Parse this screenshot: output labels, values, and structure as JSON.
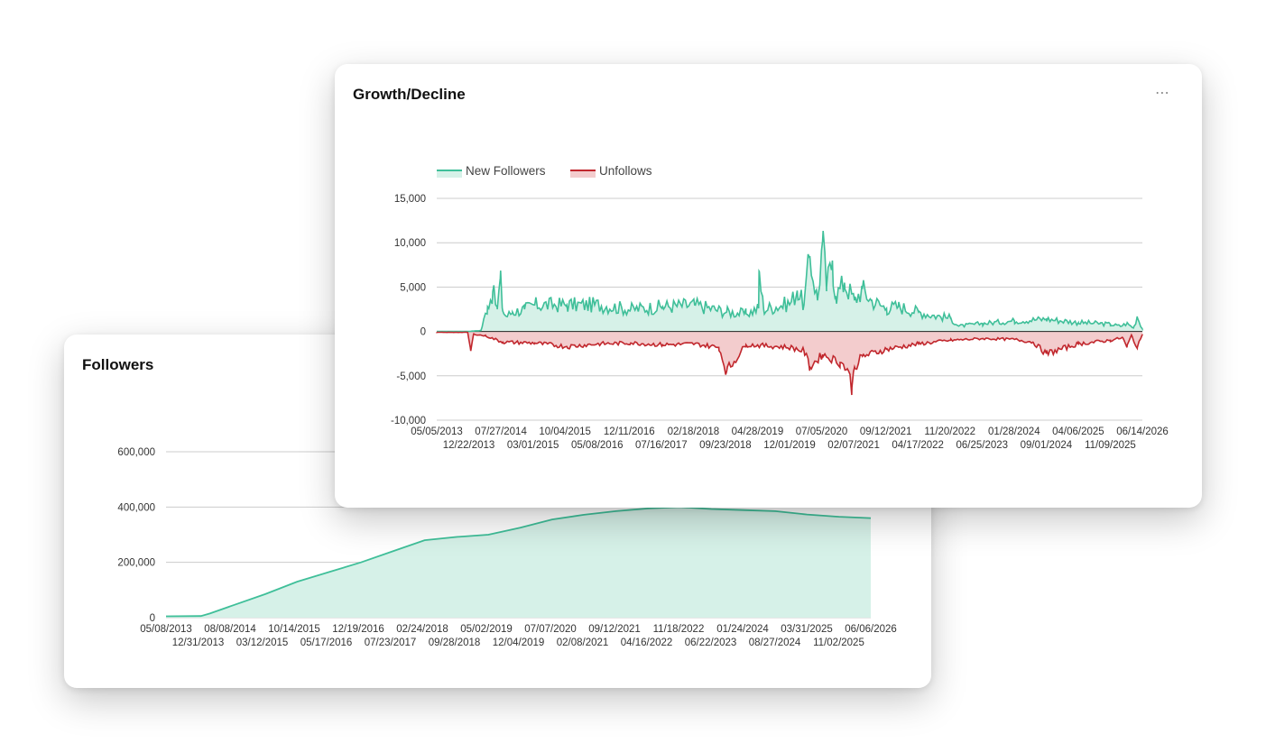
{
  "followers_card": {
    "title": "Followers"
  },
  "growth_card": {
    "title": "Growth/Decline",
    "more_icon": "more-horizontal-icon"
  },
  "colors": {
    "new_followers_line": "#3fbf99",
    "new_followers_fill": "#d6f1e8",
    "unfollows_line": "#c1272d",
    "unfollows_fill": "#f3cccd",
    "followers_line": "#3fbf99",
    "followers_fill": "#d6f1e8",
    "grid": "#cccccc"
  },
  "chart_data": [
    {
      "type": "line",
      "title": "Growth/Decline",
      "legend": [
        "New Followers",
        "Unfollows"
      ],
      "legend_position": "top-left",
      "grid": true,
      "ylim": [
        -10000,
        15000
      ],
      "y_ticks": [
        "15,000",
        "10,000",
        "5,000",
        "0",
        "-5,000",
        "-10,000"
      ],
      "xlim": [
        "05/05/2013",
        "06/14/2026"
      ],
      "x_ticks_row1": [
        "05/05/2013",
        "07/27/2014",
        "10/04/2015",
        "12/11/2016",
        "02/18/2018",
        "04/28/2019",
        "07/05/2020",
        "09/12/2021",
        "11/20/2022",
        "01/28/2024",
        "04/06/2025",
        "06/14/2026"
      ],
      "x_ticks_row2": [
        "12/22/2013",
        "03/01/2015",
        "05/08/2016",
        "07/16/2017",
        "09/23/2018",
        "12/01/2019",
        "02/07/2021",
        "04/17/2022",
        "06/25/2023",
        "09/01/2024",
        "11/09/2025"
      ],
      "series": [
        {
          "name": "New Followers",
          "x": [
            "05/05/2013",
            "12/01/2013",
            "03/01/2014",
            "04/15/2014",
            "05/20/2014",
            "06/20/2014",
            "07/10/2014",
            "07/27/2014",
            "08/20/2014",
            "10/01/2014",
            "12/22/2014",
            "03/01/2015",
            "10/04/2015",
            "05/08/2016",
            "12/11/2016",
            "07/16/2017",
            "02/18/2018",
            "09/23/2018",
            "02/01/2019",
            "04/28/2019",
            "05/01/2019",
            "06/01/2019",
            "12/01/2019",
            "01/15/2020",
            "03/01/2020",
            "04/10/2020",
            "06/01/2020",
            "07/05/2020",
            "08/01/2020",
            "09/10/2020",
            "10/01/2020",
            "12/01/2020",
            "02/07/2021",
            "04/01/2021",
            "06/01/2021",
            "09/12/2021",
            "12/01/2021",
            "04/17/2022",
            "08/01/2022",
            "11/20/2022",
            "01/15/2023",
            "06/25/2023",
            "01/28/2024",
            "09/01/2024",
            "04/06/2025",
            "09/01/2025",
            "11/09/2025",
            "01/15/2026",
            "03/01/2026",
            "04/15/2026",
            "05/10/2026",
            "06/14/2026"
          ],
          "values": [
            0,
            0,
            100,
            2800,
            4500,
            2500,
            6000,
            2300,
            1700,
            2200,
            2500,
            3000,
            3000,
            3000,
            2500,
            2800,
            3000,
            2200,
            2000,
            2600,
            6800,
            2500,
            3200,
            4600,
            3000,
            8500,
            3500,
            10200,
            5000,
            8000,
            4000,
            5500,
            3500,
            4800,
            3500,
            2600,
            2800,
            2200,
            1800,
            1500,
            600,
            900,
            1200,
            1400,
            1000,
            900,
            800,
            600,
            900,
            400,
            1700,
            300
          ]
        },
        {
          "name": "Unfollows",
          "x": [
            "05/05/2013",
            "12/01/2013",
            "12/22/2013",
            "01/10/2014",
            "04/01/2014",
            "07/27/2014",
            "03/01/2015",
            "10/04/2015",
            "05/08/2016",
            "12/11/2016",
            "07/16/2017",
            "02/18/2018",
            "08/01/2018",
            "09/23/2018",
            "02/01/2019",
            "06/01/2019",
            "12/01/2019",
            "03/01/2020",
            "04/10/2020",
            "07/05/2020",
            "11/01/2020",
            "12/20/2020",
            "01/20/2021",
            "02/07/2021",
            "04/01/2021",
            "09/12/2021",
            "04/17/2022",
            "11/20/2022",
            "06/25/2023",
            "01/28/2024",
            "06/01/2024",
            "09/01/2024",
            "04/06/2025",
            "11/09/2025",
            "02/01/2026",
            "03/01/2026",
            "04/01/2026",
            "05/10/2026",
            "06/14/2026"
          ],
          "values": [
            -100,
            -100,
            -2200,
            -300,
            -500,
            -1200,
            -1300,
            -1700,
            -1400,
            -1300,
            -1500,
            -1400,
            -1800,
            -4500,
            -1500,
            -1600,
            -1800,
            -2200,
            -4000,
            -2600,
            -3500,
            -4200,
            -6300,
            -4000,
            -2800,
            -2000,
            -1400,
            -1000,
            -800,
            -900,
            -1200,
            -2500,
            -1400,
            -1000,
            -700,
            -1800,
            -400,
            -1900,
            -300
          ]
        }
      ]
    },
    {
      "type": "area",
      "title": "Followers",
      "grid": true,
      "ylim": [
        0,
        600000
      ],
      "y_ticks": [
        "600,000",
        "400,000",
        "200,000",
        "0"
      ],
      "xlim": [
        "05/08/2013",
        "06/06/2026"
      ],
      "x_ticks_row1": [
        "05/08/2013",
        "08/08/2014",
        "10/14/2015",
        "12/19/2016",
        "02/24/2018",
        "05/02/2019",
        "07/07/2020",
        "09/12/2021",
        "11/18/2022",
        "01/24/2024",
        "03/31/2025",
        "06/06/2026"
      ],
      "x_ticks_row2": [
        "12/31/2013",
        "03/12/2015",
        "05/17/2016",
        "07/23/2017",
        "09/28/2018",
        "12/04/2019",
        "02/08/2021",
        "04/16/2022",
        "06/22/2023",
        "08/27/2024",
        "11/02/2025"
      ],
      "series": [
        {
          "name": "Followers",
          "x": [
            "05/08/2013",
            "12/31/2013",
            "03/01/2014",
            "08/08/2014",
            "03/12/2015",
            "10/14/2015",
            "05/17/2016",
            "12/19/2016",
            "07/23/2017",
            "02/24/2018",
            "09/28/2018",
            "05/02/2019",
            "12/04/2019",
            "07/07/2020",
            "02/08/2021",
            "09/12/2021",
            "04/16/2022",
            "11/18/2022",
            "06/22/2023",
            "01/24/2024",
            "08/27/2024",
            "03/31/2025",
            "11/02/2025",
            "06/06/2026"
          ],
          "values": [
            5000,
            6000,
            15000,
            45000,
            85000,
            130000,
            165000,
            200000,
            240000,
            280000,
            292000,
            300000,
            325000,
            355000,
            372000,
            385000,
            395000,
            400000,
            393000,
            389000,
            385000,
            373000,
            365000,
            360000
          ]
        }
      ]
    }
  ]
}
